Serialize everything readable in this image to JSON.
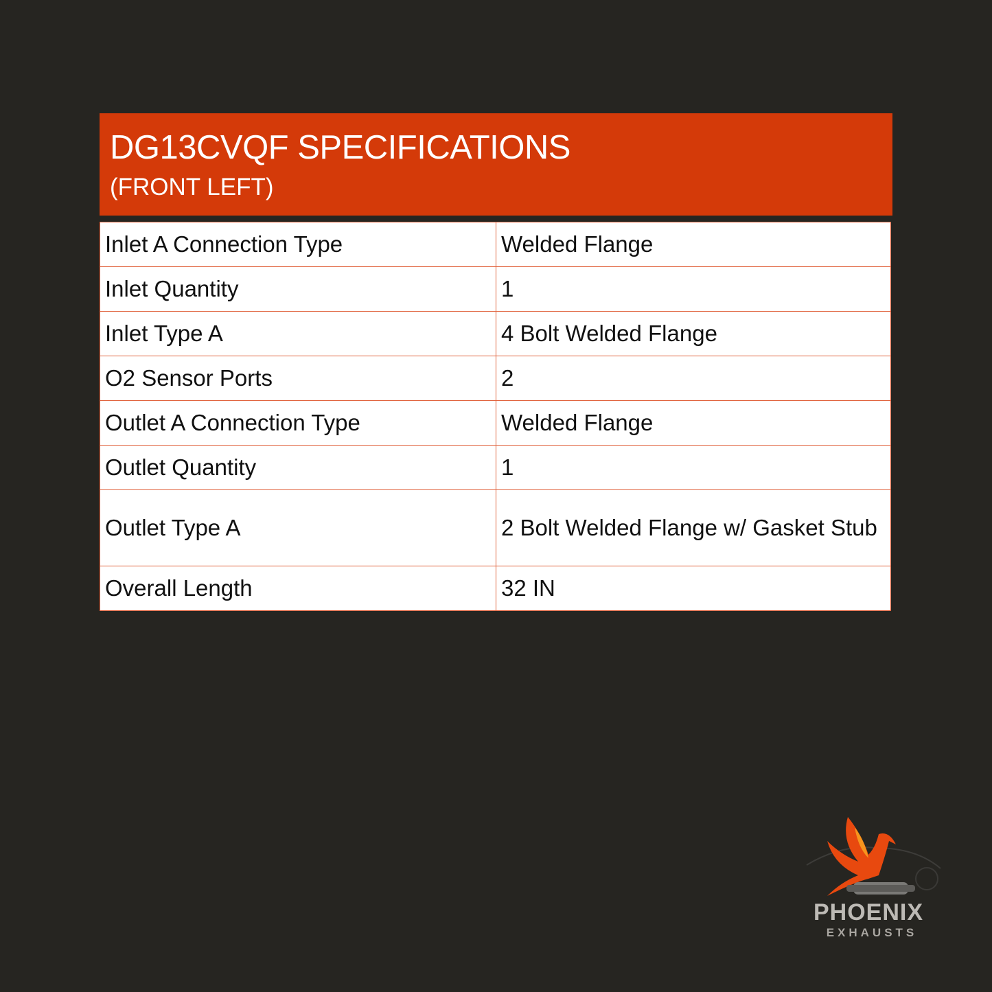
{
  "header": {
    "title": "DG13CVQF SPECIFICATIONS",
    "subtitle": "(FRONT LEFT)"
  },
  "specs": [
    {
      "label": "Inlet A Connection Type",
      "value": "Welded Flange"
    },
    {
      "label": "Inlet Quantity",
      "value": "1"
    },
    {
      "label": "Inlet Type A",
      "value": "4 Bolt Welded Flange"
    },
    {
      "label": "O2 Sensor Ports",
      "value": "2"
    },
    {
      "label": "Outlet A Connection Type",
      "value": "Welded Flange"
    },
    {
      "label": "Outlet Quantity",
      "value": "1"
    },
    {
      "label": "Outlet Type A",
      "value": "2 Bolt Welded Flange w/ Gasket Stub"
    },
    {
      "label": "Overall Length",
      "value": "32 IN"
    }
  ],
  "logo": {
    "name": "PHOENIX",
    "tagline": "EXHAUSTS"
  },
  "colors": {
    "background": "#262521",
    "accent": "#d43a09",
    "border": "#e0603a"
  }
}
